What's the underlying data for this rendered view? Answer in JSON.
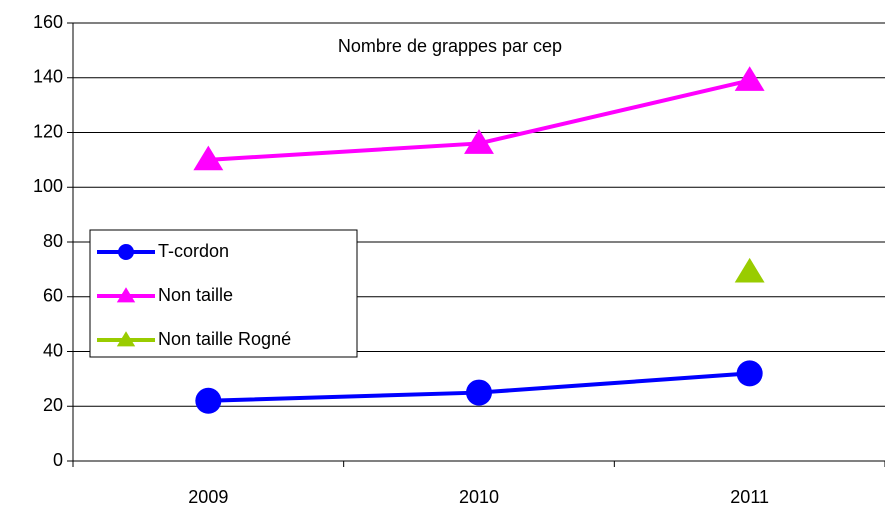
{
  "chart_data": {
    "type": "line",
    "title": "Nombre de grappes par cep",
    "categories": [
      "2009",
      "2010",
      "2011"
    ],
    "series": [
      {
        "name": "T-cordon",
        "color": "#0000ff",
        "marker": "circle",
        "values": [
          22,
          25,
          32
        ]
      },
      {
        "name": "Non taille",
        "color": "#ff00ff",
        "marker": "triangle",
        "values": [
          110,
          116,
          139
        ]
      },
      {
        "name": "Non taille Rogné",
        "color": "#99cc00",
        "marker": "triangle",
        "values": [
          null,
          null,
          69
        ]
      }
    ],
    "ylim": [
      0,
      160
    ],
    "yticks": [
      0,
      20,
      40,
      60,
      80,
      100,
      120,
      140,
      160
    ],
    "grid": true,
    "legend": "left"
  }
}
